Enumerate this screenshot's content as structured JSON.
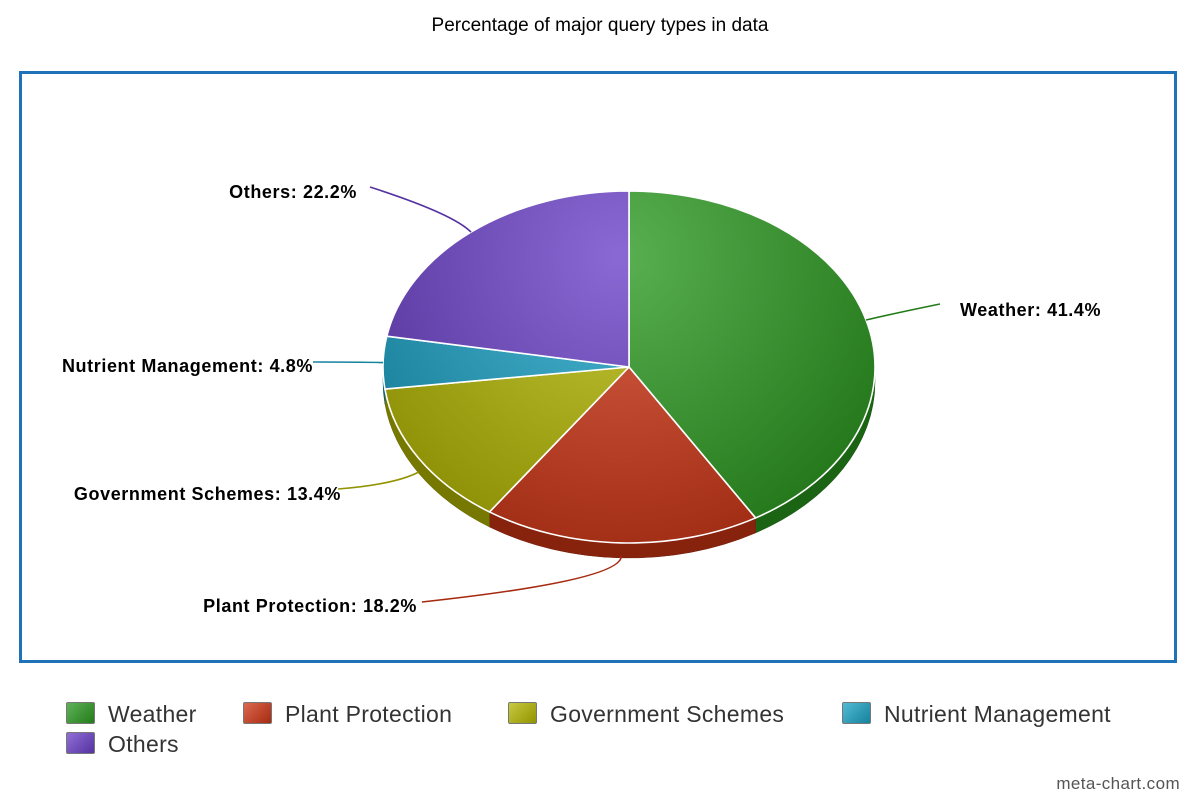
{
  "chart_data": {
    "type": "pie",
    "title": "Percentage of major query types in data",
    "categories": [
      "Weather",
      "Plant Protection",
      "Government Schemes",
      "Nutrient Management",
      "Others"
    ],
    "values": [
      41.4,
      18.2,
      13.4,
      4.8,
      22.2
    ],
    "labels": [
      "Weather: 41.4%",
      "Plant Protection: 18.2%",
      "Government Schemes: 13.4%",
      "Nutrient Management: 4.8%",
      "Others: 22.2%"
    ],
    "colors": [
      "#2a9a1f",
      "#cf3514",
      "#b5b800",
      "#1aa3c6",
      "#6a3fc8"
    ],
    "legend": "bottom",
    "style": "3d"
  },
  "credit": "meta-chart.com"
}
